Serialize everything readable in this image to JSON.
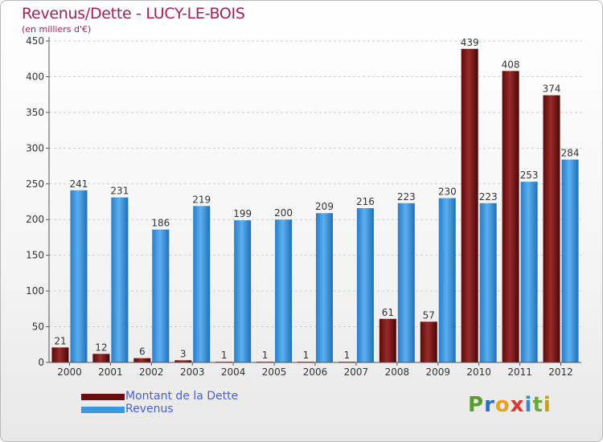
{
  "header": {
    "title": "Revenus/Dette - LUCY-LE-BOIS",
    "subtitle": "(en milliers d'€)"
  },
  "legend": {
    "debt_label": "Montant de la Dette",
    "revenue_label": "Revenus"
  },
  "logo": {
    "letters": [
      "P",
      "r",
      "o",
      "x",
      "i",
      "t",
      "i"
    ],
    "colors": [
      "#5a9a2e",
      "#2e6fbf",
      "#e8a21c",
      "#d43a2a",
      "#3a8ad0",
      "#6aaa3a",
      "#c0a020"
    ]
  },
  "colors": {
    "debt": "#7a1818",
    "revenue": "#3a98e0",
    "title": "#a0205a",
    "axis_text": "#333333"
  },
  "chart_data": {
    "type": "bar",
    "title": "Revenus/Dette - LUCY-LE-BOIS",
    "ylabel": "(en milliers d'€)",
    "xlabel": "",
    "categories": [
      "2000",
      "2001",
      "2002",
      "2003",
      "2004",
      "2005",
      "2006",
      "2007",
      "2008",
      "2009",
      "2010",
      "2011",
      "2012"
    ],
    "series": [
      {
        "name": "Montant de la Dette",
        "values": [
          21,
          12,
          6,
          3,
          1,
          1,
          1,
          1,
          61,
          57,
          439,
          408,
          374
        ]
      },
      {
        "name": "Revenus",
        "values": [
          241,
          231,
          186,
          219,
          199,
          200,
          209,
          216,
          223,
          230,
          223,
          253,
          284
        ]
      }
    ],
    "ylim": [
      0,
      450
    ],
    "yticks": [
      0,
      50,
      100,
      150,
      200,
      250,
      300,
      350,
      400,
      450
    ],
    "grid": true,
    "legend_position": "bottom-left"
  }
}
